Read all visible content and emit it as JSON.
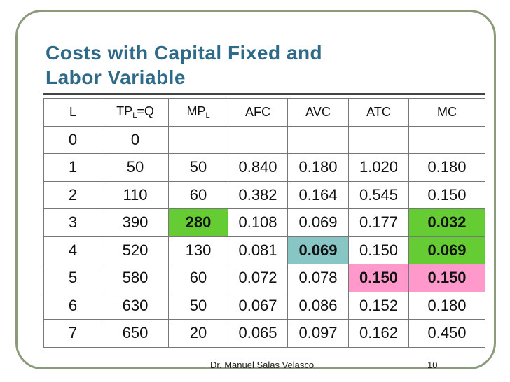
{
  "header": {
    "title": [
      "Costs with Capital Fixed and",
      "Labor Variable"
    ]
  },
  "table": {
    "columns": [
      [
        "L"
      ],
      [
        "TP",
        "L",
        "=Q"
      ],
      [
        "MP",
        "L"
      ],
      [
        "AFC"
      ],
      [
        "AVC"
      ],
      [
        "ATC"
      ],
      [
        "MC"
      ]
    ],
    "rows": [
      [
        "0",
        "0"
      ],
      [
        "1",
        "50",
        "50",
        "0.840",
        "0.180",
        "1.020",
        "0.180"
      ],
      [
        "2",
        "110",
        "60",
        "0.382",
        "0.164",
        "0.545",
        "0.150"
      ],
      [
        "3",
        "390",
        "280",
        "0.108",
        "0.069",
        "0.177",
        "0.032"
      ],
      [
        "4",
        "520",
        "130",
        "0.081",
        "0.069",
        "0.150",
        "0.069"
      ],
      [
        "5",
        "580",
        "60",
        "0.072",
        "0.078",
        "0.150",
        "0.150"
      ],
      [
        "6",
        "630",
        "50",
        "0.067",
        "0.086",
        "0.152",
        "0.180"
      ],
      [
        "7",
        "650",
        "20",
        "0.065",
        "0.097",
        "0.162",
        "0.450"
      ]
    ]
  },
  "footer": {
    "author": "Dr. Manuel Salas Velasco",
    "page": "10"
  }
}
